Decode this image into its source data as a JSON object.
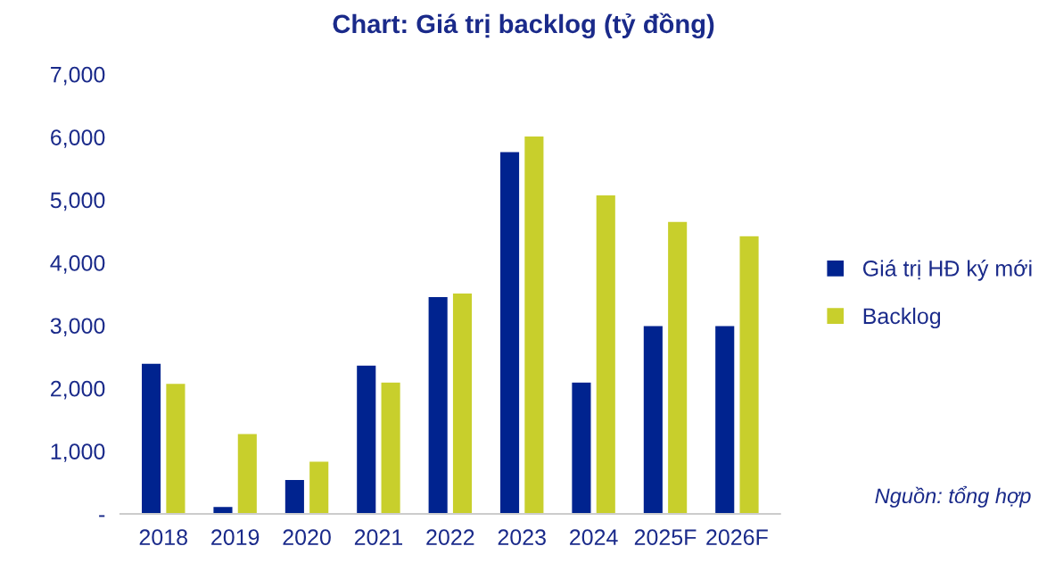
{
  "chart_data": {
    "type": "bar",
    "title": "Chart: Giá trị backlog (tỷ đồng)",
    "categories": [
      "2018",
      "2019",
      "2020",
      "2021",
      "2022",
      "2023",
      "2024",
      "2025F",
      "2026F"
    ],
    "series": [
      {
        "name": "Giá trị HĐ ký mới",
        "color": "#00238f",
        "values": [
          2400,
          120,
          550,
          2370,
          3460,
          5770,
          2100,
          3000,
          3000
        ]
      },
      {
        "name": "Backlog",
        "color": "#c8cf2c",
        "values": [
          2080,
          1280,
          840,
          2100,
          3520,
          6020,
          5080,
          4660,
          4430
        ]
      }
    ],
    "ylim": [
      0,
      7000
    ],
    "yticks": [
      {
        "value": 0,
        "label": "-"
      },
      {
        "value": 1000,
        "label": "1,000"
      },
      {
        "value": 2000,
        "label": "2,000"
      },
      {
        "value": 3000,
        "label": "3,000"
      },
      {
        "value": 4000,
        "label": "4,000"
      },
      {
        "value": 5000,
        "label": "5,000"
      },
      {
        "value": 6000,
        "label": "6,000"
      },
      {
        "value": 7000,
        "label": "7,000"
      }
    ],
    "legend": "right",
    "grid": false,
    "annotations": [
      "Nguồn: tổng hợp"
    ]
  }
}
